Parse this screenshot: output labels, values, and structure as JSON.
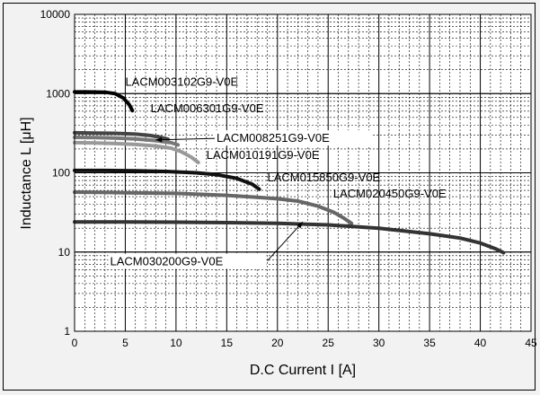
{
  "chart_data": {
    "type": "line",
    "title": "",
    "xlabel": "D.C Current I [A]",
    "ylabel": "Inductance L  [μH]",
    "xlim": [
      0,
      45
    ],
    "ylim": [
      1,
      10000
    ],
    "yscale": "log",
    "x_ticks": [
      "0",
      "5",
      "10",
      "15",
      "20",
      "25",
      "30",
      "35",
      "40",
      "45"
    ],
    "y_ticks": [
      "1",
      "10",
      "100",
      "1000",
      "10000"
    ],
    "grid": true,
    "series": [
      {
        "name": "LACM003102G9-V0E",
        "color": "#000000",
        "points": [
          [
            0,
            1050
          ],
          [
            1,
            1050
          ],
          [
            2,
            1048
          ],
          [
            3,
            1040
          ],
          [
            4,
            1000
          ],
          [
            4.8,
            880
          ],
          [
            5.4,
            720
          ],
          [
            5.7,
            610
          ]
        ]
      },
      {
        "name": "LACM006301G9-V0E",
        "color": "#444444",
        "points": [
          [
            0,
            320
          ],
          [
            2,
            318
          ],
          [
            4,
            315
          ],
          [
            6,
            308
          ],
          [
            7.5,
            295
          ],
          [
            8.5,
            280
          ],
          [
            9.2,
            265
          ]
        ]
      },
      {
        "name": "LACM008251G9-V0E",
        "color": "#777777",
        "points": [
          [
            0,
            280
          ],
          [
            2,
            278
          ],
          [
            4,
            275
          ],
          [
            6,
            268
          ],
          [
            8,
            255
          ],
          [
            9.5,
            240
          ],
          [
            10.2,
            225
          ]
        ]
      },
      {
        "name": "LACM010191G9-V0E",
        "color": "#999999",
        "points": [
          [
            0,
            240
          ],
          [
            2,
            238
          ],
          [
            4,
            234
          ],
          [
            6,
            228
          ],
          [
            8,
            218
          ],
          [
            9.5,
            205
          ],
          [
            10.5,
            185
          ],
          [
            11.5,
            158
          ],
          [
            12.2,
            135
          ]
        ]
      },
      {
        "name": "LACM015850G9-V0E",
        "color": "#111111",
        "points": [
          [
            0,
            107
          ],
          [
            3,
            107
          ],
          [
            6,
            106
          ],
          [
            9,
            104
          ],
          [
            12,
            100
          ],
          [
            14,
            95
          ],
          [
            16,
            85
          ],
          [
            17.5,
            72
          ],
          [
            18.2,
            62
          ]
        ]
      },
      {
        "name": "LACM020450G9-V0E",
        "color": "#666666",
        "points": [
          [
            0,
            57
          ],
          [
            5,
            56
          ],
          [
            10,
            55
          ],
          [
            15,
            52
          ],
          [
            18,
            49
          ],
          [
            20,
            47
          ],
          [
            22,
            44
          ],
          [
            24,
            38
          ],
          [
            25.5,
            32
          ],
          [
            26.5,
            27
          ],
          [
            27.3,
            23
          ]
        ]
      },
      {
        "name": "LACM030200G9-V0E",
        "color": "#333333",
        "points": [
          [
            0,
            24
          ],
          [
            5,
            24
          ],
          [
            10,
            23.8
          ],
          [
            15,
            23.5
          ],
          [
            20,
            23
          ],
          [
            25,
            22
          ],
          [
            30,
            20
          ],
          [
            35,
            17
          ],
          [
            38,
            15
          ],
          [
            40,
            13
          ],
          [
            41.5,
            11
          ],
          [
            42.3,
            9.8
          ]
        ]
      }
    ]
  }
}
